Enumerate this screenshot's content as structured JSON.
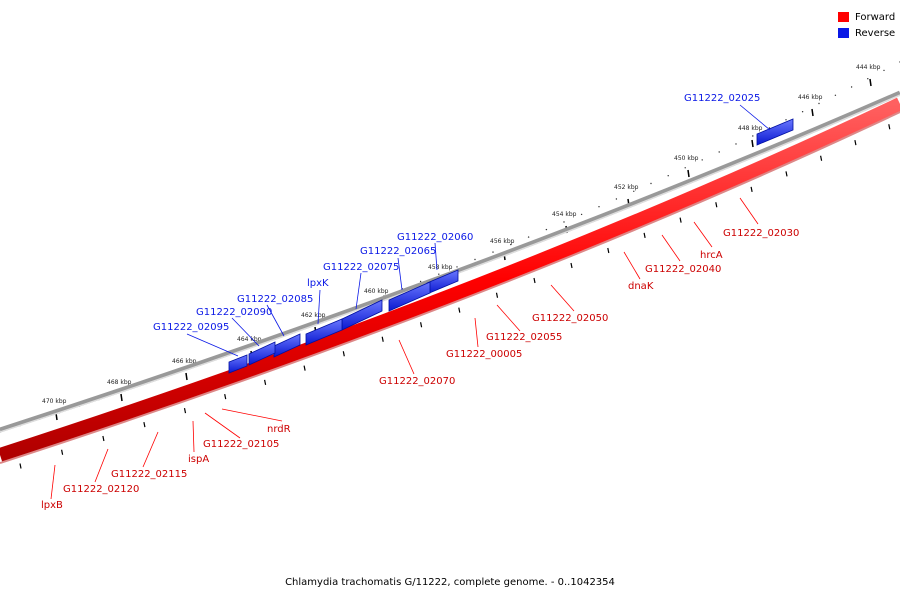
{
  "colors": {
    "forward": "#ff0000",
    "reverse": "#0a18e6",
    "backbone_a": "#888888",
    "backbone_b": "#cccccc"
  },
  "legend": [
    {
      "label": "Forward",
      "color": "#ff0000"
    },
    {
      "label": "Reverse",
      "color": "#0a18e6"
    }
  ],
  "caption": "Chlamydia trachomatis G/11222, complete genome. - 0..1042354",
  "ticks": [
    "444 kbp",
    "446 kbp",
    "448 kbp",
    "450 kbp",
    "452 kbp",
    "454 kbp",
    "456 kbp",
    "458 kbp",
    "460 kbp",
    "462 kbp",
    "464 kbp",
    "466 kbp",
    "468 kbp",
    "470 kbp"
  ],
  "reverse_genes": [
    "G11222_02025",
    "G11222_02060",
    "G11222_02065",
    "G11222_02075",
    "lpxK",
    "G11222_02085",
    "G11222_02090",
    "G11222_02095"
  ],
  "forward_genes": [
    "G11222_02030",
    "hrcA",
    "G11222_02040",
    "dnaK",
    "G11222_02050",
    "G11222_02055",
    "G11222_00005",
    "G11222_02070",
    "nrdR",
    "G11222_02105",
    "ispA",
    "G11222_02115",
    "G11222_02120",
    "lpxB"
  ]
}
